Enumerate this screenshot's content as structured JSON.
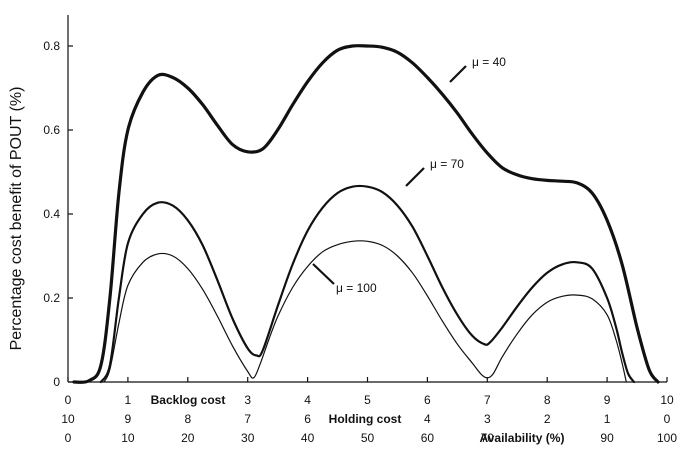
{
  "chart_data": {
    "type": "line",
    "ylabel": "Percentage cost benefit of POUT (%)",
    "ylim": [
      0,
      0.85
    ],
    "xlim": [
      0,
      10
    ],
    "y_ticks": [
      "0",
      "0.2",
      "0.4",
      "0.6",
      "0.8"
    ],
    "x_axes": [
      {
        "title": "Backlog cost",
        "ticks": [
          "0",
          "1",
          "2",
          "3",
          "4",
          "5",
          "6",
          "7",
          "8",
          "9",
          "10"
        ]
      },
      {
        "title": "Holding cost",
        "ticks": [
          "10",
          "9",
          "8",
          "7",
          "6",
          "5",
          "4",
          "3",
          "2",
          "1",
          "0"
        ]
      },
      {
        "title": "Availability (%)",
        "ticks": [
          "0",
          "10",
          "20",
          "30",
          "40",
          "50",
          "60",
          "70",
          "80",
          "90",
          "100"
        ]
      }
    ],
    "grid": false,
    "legend": "none",
    "series": [
      {
        "name": "μ = 40",
        "x": [
          0.1,
          0.35,
          0.55,
          0.7,
          0.85,
          1.0,
          1.25,
          1.5,
          1.75,
          2.0,
          2.25,
          2.5,
          2.75,
          3.0,
          3.25,
          3.5,
          3.75,
          4.0,
          4.25,
          4.5,
          4.75,
          5.0,
          5.25,
          5.5,
          5.75,
          6.0,
          6.25,
          6.5,
          6.75,
          7.0,
          7.25,
          7.5,
          7.75,
          8.0,
          8.25,
          8.5,
          8.75,
          9.0,
          9.25,
          9.5,
          9.7,
          9.85
        ],
        "y": [
          0.0,
          0.003,
          0.04,
          0.2,
          0.45,
          0.6,
          0.69,
          0.73,
          0.725,
          0.7,
          0.66,
          0.61,
          0.565,
          0.548,
          0.555,
          0.6,
          0.66,
          0.715,
          0.76,
          0.79,
          0.8,
          0.8,
          0.797,
          0.785,
          0.76,
          0.725,
          0.685,
          0.64,
          0.59,
          0.545,
          0.51,
          0.493,
          0.484,
          0.48,
          0.478,
          0.474,
          0.45,
          0.385,
          0.28,
          0.13,
          0.03,
          0.0
        ]
      },
      {
        "name": "μ = 70",
        "x": [
          0.55,
          0.7,
          0.85,
          1.0,
          1.25,
          1.5,
          1.75,
          2.0,
          2.25,
          2.5,
          2.75,
          3.0,
          3.15,
          3.25,
          3.5,
          3.75,
          4.0,
          4.25,
          4.5,
          4.75,
          5.0,
          5.25,
          5.5,
          5.75,
          6.0,
          6.25,
          6.5,
          6.75,
          6.95,
          7.05,
          7.25,
          7.5,
          7.75,
          8.0,
          8.25,
          8.5,
          8.75,
          9.0,
          9.15,
          9.25,
          9.35,
          9.45
        ],
        "y": [
          0.0,
          0.04,
          0.2,
          0.33,
          0.4,
          0.427,
          0.42,
          0.385,
          0.325,
          0.24,
          0.15,
          0.08,
          0.063,
          0.075,
          0.18,
          0.28,
          0.36,
          0.415,
          0.45,
          0.465,
          0.465,
          0.452,
          0.42,
          0.37,
          0.3,
          0.225,
          0.16,
          0.11,
          0.09,
          0.095,
          0.13,
          0.18,
          0.225,
          0.26,
          0.28,
          0.285,
          0.27,
          0.2,
          0.13,
          0.07,
          0.02,
          0.0
        ]
      },
      {
        "name": "μ = 100",
        "x": [
          0.6,
          0.7,
          0.85,
          1.0,
          1.25,
          1.5,
          1.75,
          2.0,
          2.25,
          2.5,
          2.75,
          3.0,
          3.1,
          3.2,
          3.35,
          3.5,
          3.75,
          4.0,
          4.25,
          4.5,
          4.75,
          5.0,
          5.25,
          5.5,
          5.75,
          6.0,
          6.25,
          6.5,
          6.75,
          6.9,
          7.0,
          7.1,
          7.25,
          7.5,
          7.75,
          8.0,
          8.25,
          8.5,
          8.75,
          9.0,
          9.15,
          9.25,
          9.32
        ],
        "y": [
          0.0,
          0.03,
          0.14,
          0.23,
          0.285,
          0.305,
          0.3,
          0.27,
          0.22,
          0.155,
          0.085,
          0.025,
          0.01,
          0.04,
          0.1,
          0.155,
          0.225,
          0.275,
          0.31,
          0.327,
          0.335,
          0.335,
          0.325,
          0.3,
          0.26,
          0.205,
          0.145,
          0.09,
          0.045,
          0.018,
          0.01,
          0.02,
          0.06,
          0.115,
          0.16,
          0.19,
          0.204,
          0.207,
          0.198,
          0.16,
          0.1,
          0.045,
          0.0
        ]
      }
    ],
    "annotations": [
      {
        "text": "μ = 40",
        "series": 0
      },
      {
        "text": "μ = 70",
        "series": 1
      },
      {
        "text": "μ = 100",
        "series": 2
      }
    ]
  }
}
